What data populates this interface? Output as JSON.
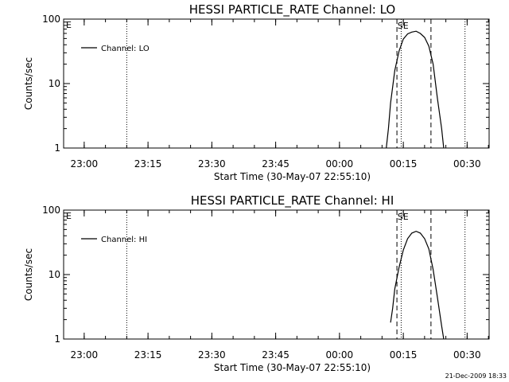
{
  "footer": {
    "timestamp": "21-Dec-2009 18:33"
  },
  "chart_data": [
    {
      "type": "line",
      "title": "HESSI PARTICLE_RATE Channel: LO",
      "xlabel": "Start Time (30-May-07 22:55:10)",
      "ylabel": "Counts/sec",
      "y_scale": "log",
      "ylim": [
        1,
        100
      ],
      "xlim": [
        "22:55:10",
        "00:35:10"
      ],
      "x_tick_labels": [
        "23:00",
        "23:15",
        "23:30",
        "23:45",
        "00:00",
        "00:15",
        "00:30"
      ],
      "y_tick_labels": [
        "1",
        "10",
        "100"
      ],
      "series": [
        {
          "name": "Channel: LO",
          "x": [
            "00:11:00",
            "00:11:30",
            "00:12:00",
            "00:13:00",
            "00:14:00",
            "00:15:00",
            "00:16:00",
            "00:17:00",
            "00:18:00",
            "00:19:00",
            "00:20:00",
            "00:21:00",
            "00:22:00",
            "00:23:00",
            "00:24:00",
            "00:24:30"
          ],
          "values": [
            1,
            2,
            5,
            16,
            32,
            49,
            59,
            63,
            65,
            60,
            52,
            38,
            20,
            6,
            2,
            1
          ]
        }
      ],
      "annotations": [
        {
          "text": "E",
          "position": "top-left"
        },
        {
          "text": "SE",
          "position": "top, near 00:14"
        }
      ],
      "dotted_lines_at": [
        "23:10",
        "00:14:30",
        "00:29:30"
      ],
      "dashed_lines_at": [
        "00:13:30",
        "00:21:30"
      ],
      "legend_position": "top-left",
      "grid": false
    },
    {
      "type": "line",
      "title": "HESSI PARTICLE_RATE Channel: HI",
      "xlabel": "Start Time (30-May-07 22:55:10)",
      "ylabel": "Counts/sec",
      "y_scale": "log",
      "ylim": [
        1,
        100
      ],
      "xlim": [
        "22:55:10",
        "00:35:10"
      ],
      "x_tick_labels": [
        "23:00",
        "23:15",
        "23:30",
        "23:45",
        "00:00",
        "00:15",
        "00:30"
      ],
      "y_tick_labels": [
        "1",
        "10",
        "100"
      ],
      "series": [
        {
          "name": "Channel: HI",
          "x": [
            "00:12:00",
            "00:12:30",
            "00:13:00",
            "00:14:00",
            "00:15:00",
            "00:16:00",
            "00:17:00",
            "00:18:00",
            "00:19:00",
            "00:20:00",
            "00:21:00",
            "00:22:00",
            "00:23:00",
            "00:24:00",
            "00:24:30"
          ],
          "values": [
            1.8,
            3,
            6,
            13,
            24,
            36,
            44,
            47,
            44,
            36,
            25,
            12,
            4.5,
            1.6,
            1
          ]
        }
      ],
      "annotations": [
        {
          "text": "E",
          "position": "top-left"
        },
        {
          "text": "SE",
          "position": "top, near 00:14"
        }
      ],
      "dotted_lines_at": [
        "23:10",
        "00:14:30",
        "00:29:30"
      ],
      "dashed_lines_at": [
        "00:13:30",
        "00:21:30"
      ],
      "legend_position": "top-left",
      "grid": false
    }
  ]
}
